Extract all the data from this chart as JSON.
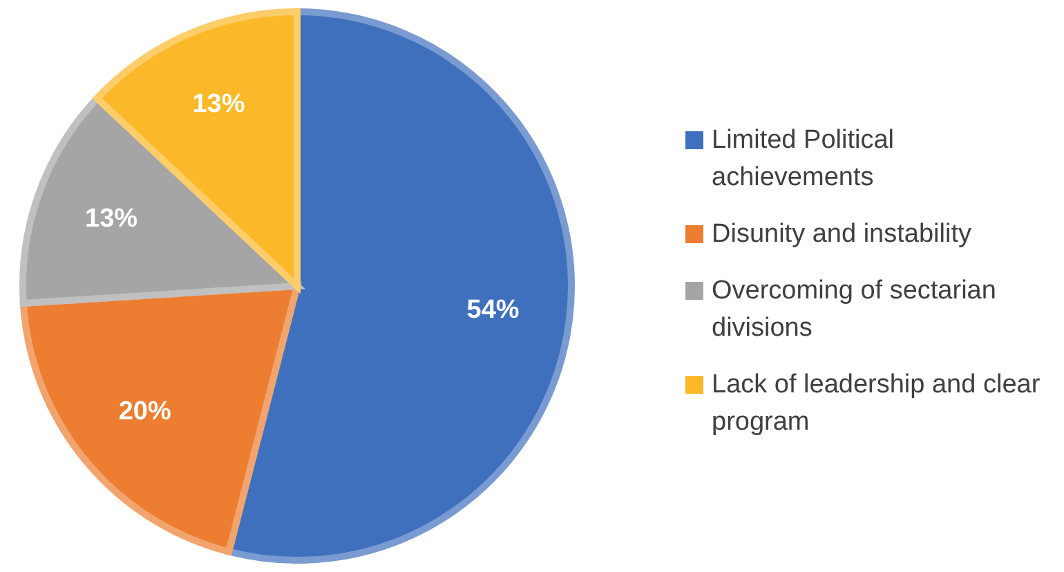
{
  "chart_data": {
    "type": "pie",
    "categories": [
      "Limited Political achievements",
      "Disunity and instability",
      "Overcoming of sectarian divisions",
      "Lack of leadership and clear program"
    ],
    "values": [
      54,
      20,
      13,
      13
    ],
    "colors": [
      "#3f70bd",
      "#ed7d31",
      "#a5a5a5",
      "#fbb829"
    ],
    "value_labels": [
      "54%",
      "20%",
      "13%",
      "13%"
    ],
    "legend": "right"
  }
}
